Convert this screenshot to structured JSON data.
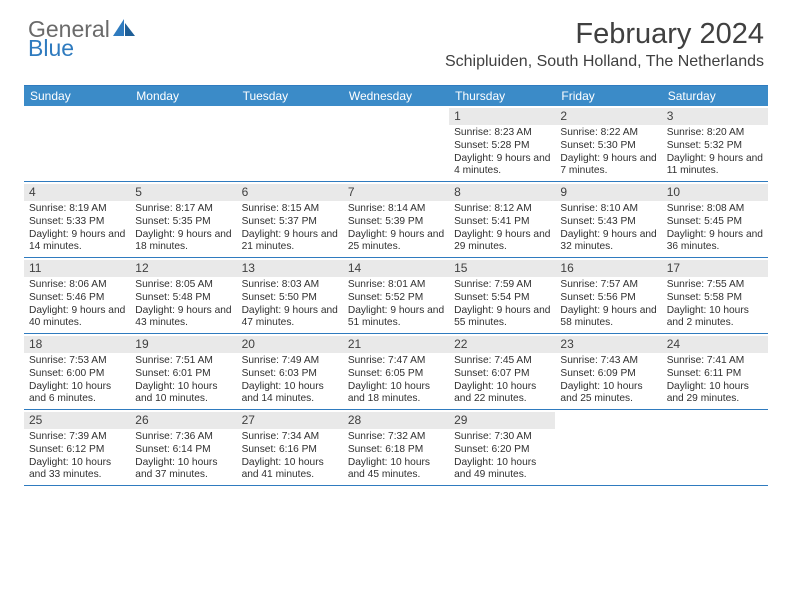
{
  "logo": {
    "text_grey": "General",
    "text_blue": "Blue"
  },
  "title": "February 2024",
  "location": "Schipluiden, South Holland, The Netherlands",
  "colors": {
    "header_bar": "#3b8bc8",
    "header_rule": "#2f7bbf",
    "daynum_bg": "#e9e9e9",
    "body_text": "#303030",
    "title_text": "#404040"
  },
  "days_of_week": [
    "Sunday",
    "Monday",
    "Tuesday",
    "Wednesday",
    "Thursday",
    "Friday",
    "Saturday"
  ],
  "weeks": [
    [
      null,
      null,
      null,
      null,
      {
        "n": "1",
        "sunrise": "8:23 AM",
        "sunset": "5:28 PM",
        "dl_h": "9",
        "dl_m": "4"
      },
      {
        "n": "2",
        "sunrise": "8:22 AM",
        "sunset": "5:30 PM",
        "dl_h": "9",
        "dl_m": "7"
      },
      {
        "n": "3",
        "sunrise": "8:20 AM",
        "sunset": "5:32 PM",
        "dl_h": "9",
        "dl_m": "11"
      }
    ],
    [
      {
        "n": "4",
        "sunrise": "8:19 AM",
        "sunset": "5:33 PM",
        "dl_h": "9",
        "dl_m": "14"
      },
      {
        "n": "5",
        "sunrise": "8:17 AM",
        "sunset": "5:35 PM",
        "dl_h": "9",
        "dl_m": "18"
      },
      {
        "n": "6",
        "sunrise": "8:15 AM",
        "sunset": "5:37 PM",
        "dl_h": "9",
        "dl_m": "21"
      },
      {
        "n": "7",
        "sunrise": "8:14 AM",
        "sunset": "5:39 PM",
        "dl_h": "9",
        "dl_m": "25"
      },
      {
        "n": "8",
        "sunrise": "8:12 AM",
        "sunset": "5:41 PM",
        "dl_h": "9",
        "dl_m": "29"
      },
      {
        "n": "9",
        "sunrise": "8:10 AM",
        "sunset": "5:43 PM",
        "dl_h": "9",
        "dl_m": "32"
      },
      {
        "n": "10",
        "sunrise": "8:08 AM",
        "sunset": "5:45 PM",
        "dl_h": "9",
        "dl_m": "36"
      }
    ],
    [
      {
        "n": "11",
        "sunrise": "8:06 AM",
        "sunset": "5:46 PM",
        "dl_h": "9",
        "dl_m": "40"
      },
      {
        "n": "12",
        "sunrise": "8:05 AM",
        "sunset": "5:48 PM",
        "dl_h": "9",
        "dl_m": "43"
      },
      {
        "n": "13",
        "sunrise": "8:03 AM",
        "sunset": "5:50 PM",
        "dl_h": "9",
        "dl_m": "47"
      },
      {
        "n": "14",
        "sunrise": "8:01 AM",
        "sunset": "5:52 PM",
        "dl_h": "9",
        "dl_m": "51"
      },
      {
        "n": "15",
        "sunrise": "7:59 AM",
        "sunset": "5:54 PM",
        "dl_h": "9",
        "dl_m": "55"
      },
      {
        "n": "16",
        "sunrise": "7:57 AM",
        "sunset": "5:56 PM",
        "dl_h": "9",
        "dl_m": "58"
      },
      {
        "n": "17",
        "sunrise": "7:55 AM",
        "sunset": "5:58 PM",
        "dl_h": "10",
        "dl_m": "2"
      }
    ],
    [
      {
        "n": "18",
        "sunrise": "7:53 AM",
        "sunset": "6:00 PM",
        "dl_h": "10",
        "dl_m": "6"
      },
      {
        "n": "19",
        "sunrise": "7:51 AM",
        "sunset": "6:01 PM",
        "dl_h": "10",
        "dl_m": "10"
      },
      {
        "n": "20",
        "sunrise": "7:49 AM",
        "sunset": "6:03 PM",
        "dl_h": "10",
        "dl_m": "14"
      },
      {
        "n": "21",
        "sunrise": "7:47 AM",
        "sunset": "6:05 PM",
        "dl_h": "10",
        "dl_m": "18"
      },
      {
        "n": "22",
        "sunrise": "7:45 AM",
        "sunset": "6:07 PM",
        "dl_h": "10",
        "dl_m": "22"
      },
      {
        "n": "23",
        "sunrise": "7:43 AM",
        "sunset": "6:09 PM",
        "dl_h": "10",
        "dl_m": "25"
      },
      {
        "n": "24",
        "sunrise": "7:41 AM",
        "sunset": "6:11 PM",
        "dl_h": "10",
        "dl_m": "29"
      }
    ],
    [
      {
        "n": "25",
        "sunrise": "7:39 AM",
        "sunset": "6:12 PM",
        "dl_h": "10",
        "dl_m": "33"
      },
      {
        "n": "26",
        "sunrise": "7:36 AM",
        "sunset": "6:14 PM",
        "dl_h": "10",
        "dl_m": "37"
      },
      {
        "n": "27",
        "sunrise": "7:34 AM",
        "sunset": "6:16 PM",
        "dl_h": "10",
        "dl_m": "41"
      },
      {
        "n": "28",
        "sunrise": "7:32 AM",
        "sunset": "6:18 PM",
        "dl_h": "10",
        "dl_m": "45"
      },
      {
        "n": "29",
        "sunrise": "7:30 AM",
        "sunset": "6:20 PM",
        "dl_h": "10",
        "dl_m": "49"
      },
      null,
      null
    ]
  ]
}
